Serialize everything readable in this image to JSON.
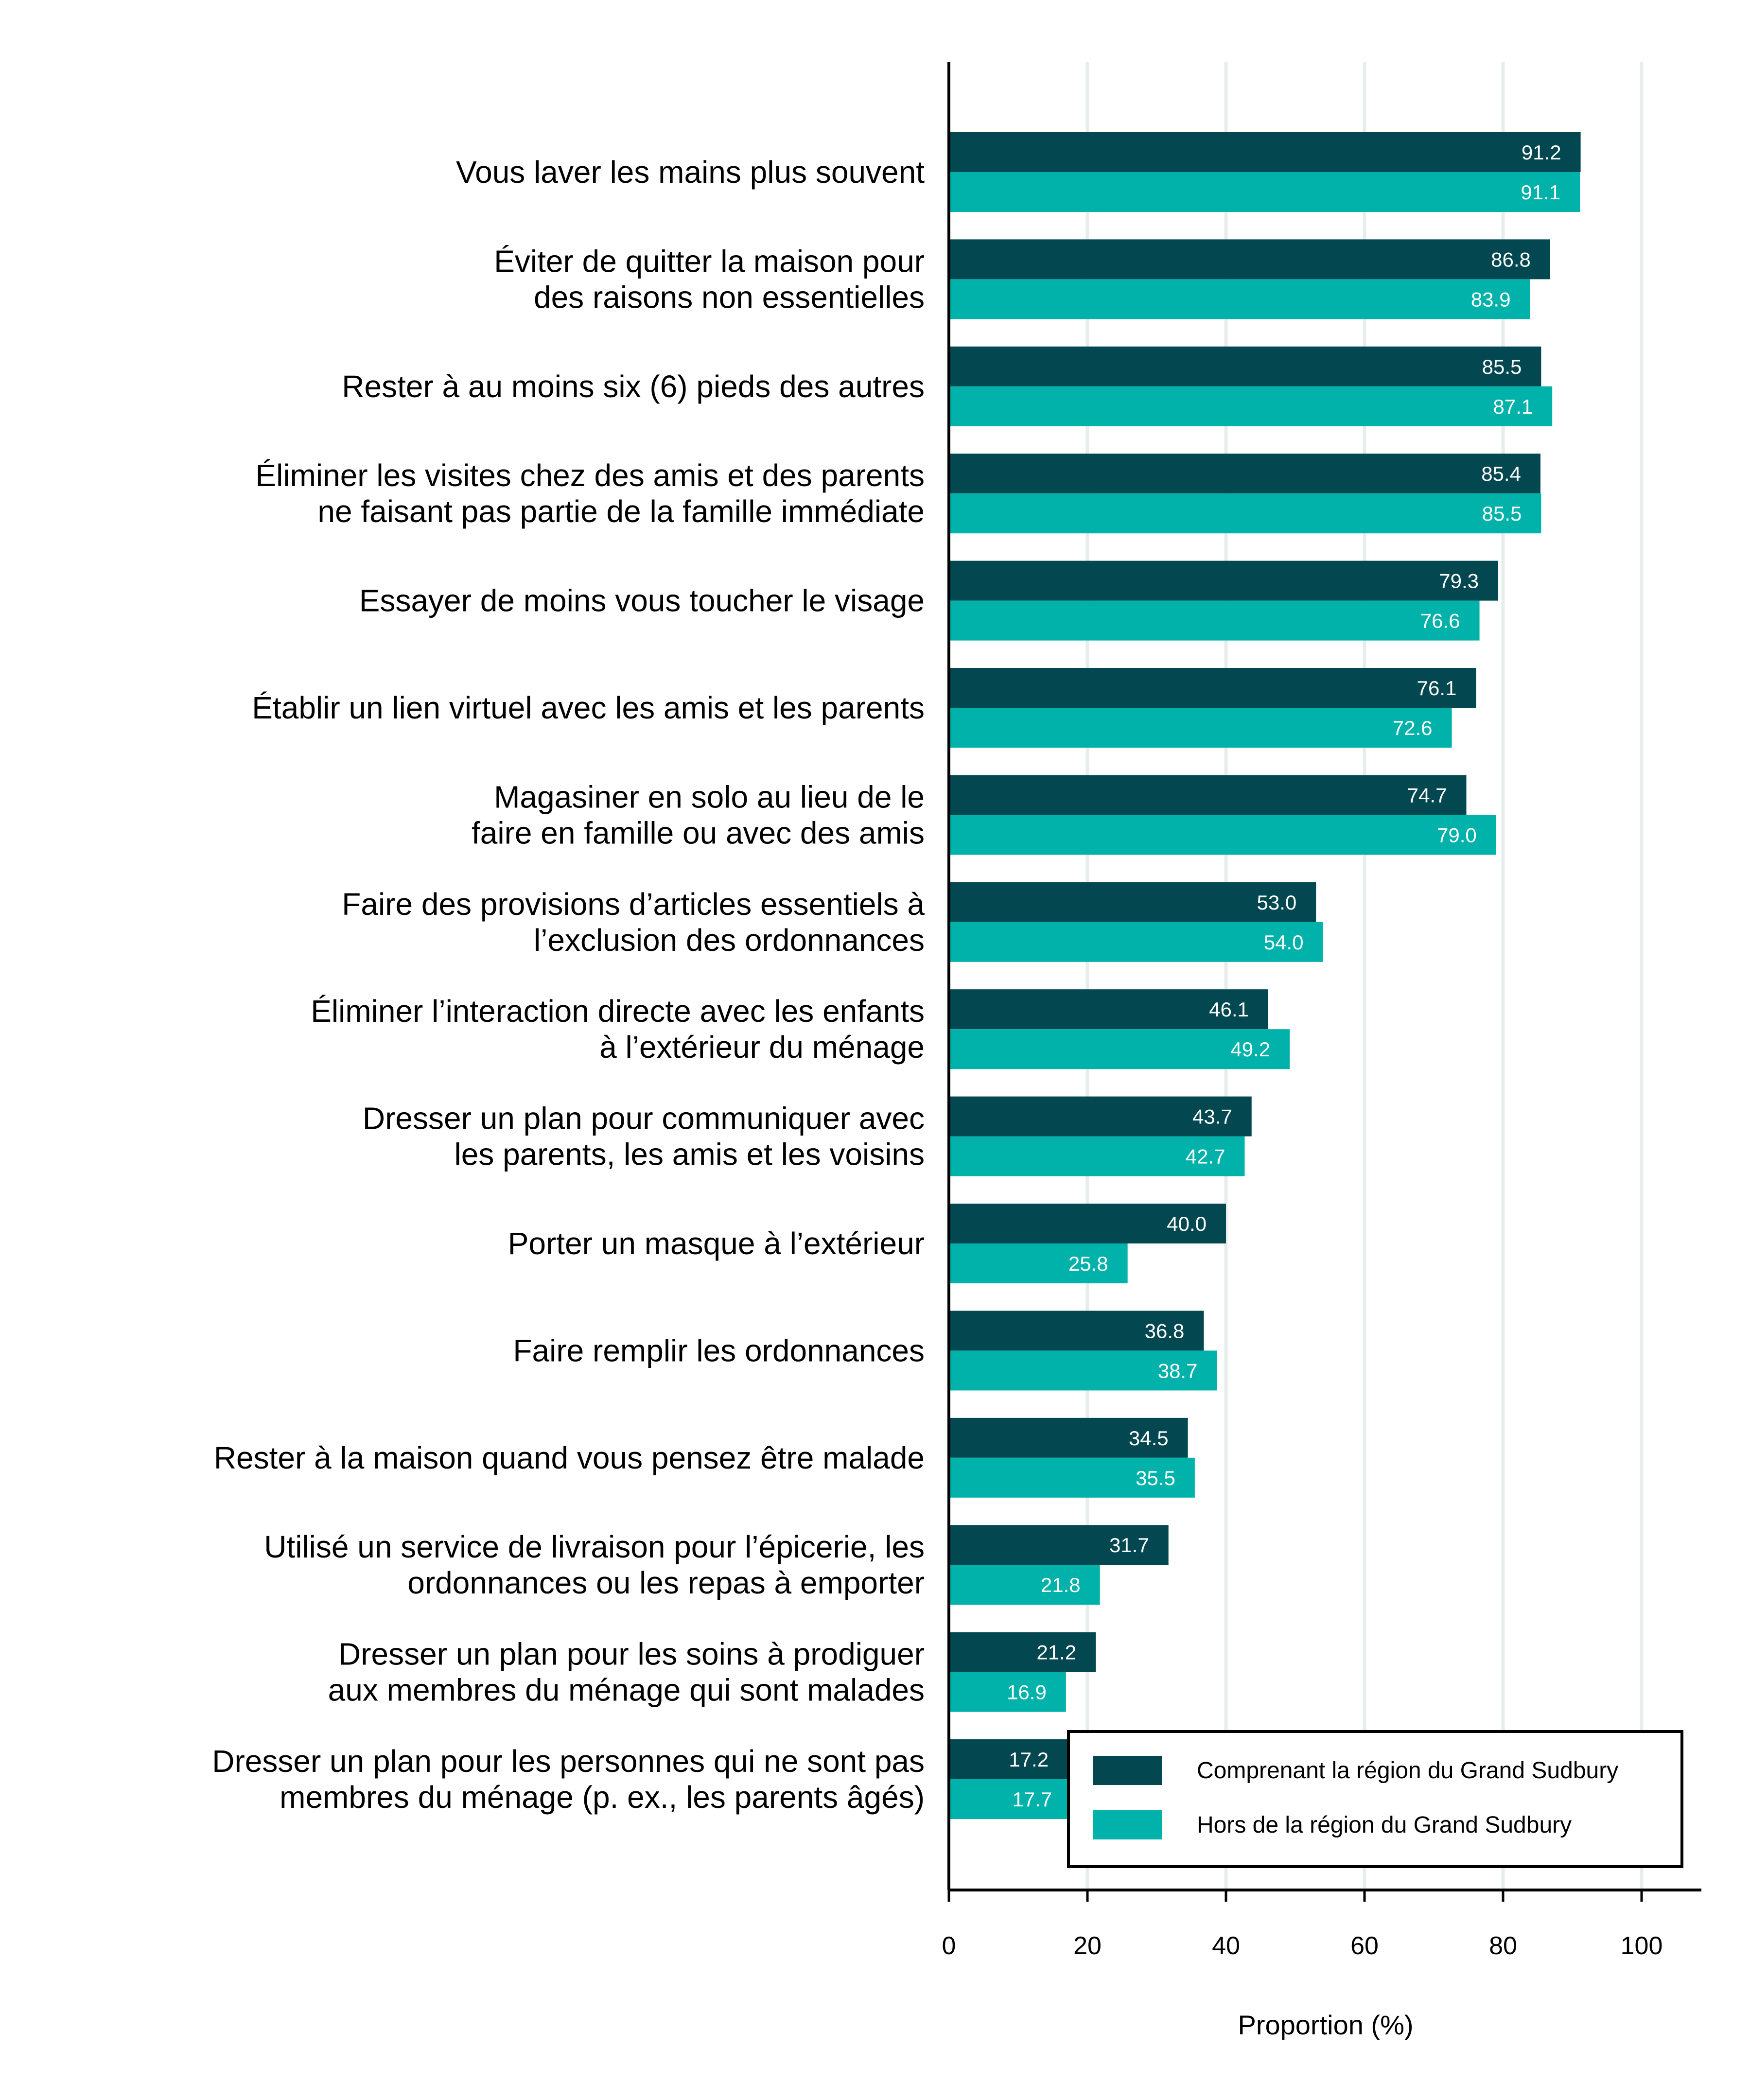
{
  "chart_data": {
    "type": "bar",
    "orientation": "horizontal",
    "categories": [
      [
        "Vous laver les mains plus souvent"
      ],
      [
        "Éviter de quitter la maison pour",
        "des raisons non essentielles"
      ],
      [
        "Rester à au moins six (6) pieds des autres"
      ],
      [
        "Éliminer les visites chez des amis et des parents",
        "ne faisant pas partie de la famille immédiate"
      ],
      [
        "Essayer de moins vous toucher le visage"
      ],
      [
        "Établir un lien virtuel avec les amis et les parents"
      ],
      [
        "Magasiner en solo au lieu de le",
        "faire en famille ou avec des amis"
      ],
      [
        "Faire des provisions d’articles essentiels à",
        "l’exclusion des ordonnances"
      ],
      [
        "Éliminer l’interaction directe avec les enfants",
        "à l’extérieur du ménage"
      ],
      [
        "Dresser un plan pour communiquer avec",
        "les parents, les amis et les voisins"
      ],
      [
        "Porter un masque à l’extérieur"
      ],
      [
        "Faire remplir les ordonnances"
      ],
      [
        "Rester à la maison quand vous pensez être malade"
      ],
      [
        "Utilisé un service de livraison pour l’épicerie, les",
        "ordonnances ou les repas à emporter"
      ],
      [
        "Dresser un plan pour les soins à prodiguer",
        "aux membres du ménage qui sont malades"
      ],
      [
        "Dresser un plan pour les personnes qui ne sont pas",
        "membres du ménage (p. ex., les parents âgés)"
      ]
    ],
    "series": [
      {
        "name": "Comprenant la région du Grand Sudbury",
        "color": "#034750",
        "values": [
          91.2,
          86.8,
          85.5,
          85.4,
          79.3,
          76.1,
          74.7,
          53.0,
          46.1,
          43.7,
          40.0,
          36.8,
          34.5,
          31.7,
          21.2,
          17.2
        ],
        "labels": [
          "91.2",
          "86.8",
          "85.5",
          "85.4",
          "79.3",
          "76.1",
          "74.7",
          "53.0",
          "46.1",
          "43.7",
          "40.0",
          "36.8",
          "34.5",
          "31.7",
          "21.2",
          "17.2"
        ]
      },
      {
        "name": "Hors de la région du Grand Sudbury",
        "color": "#00b2a9",
        "values": [
          91.1,
          83.9,
          87.1,
          85.5,
          76.6,
          72.6,
          79.0,
          54.0,
          49.2,
          42.7,
          25.8,
          38.7,
          35.5,
          21.8,
          16.9,
          17.7
        ],
        "labels": [
          "91.1",
          "83.9",
          "87.1",
          "85.5",
          "76.6",
          "72.6",
          "79.0",
          "54.0",
          "49.2",
          "42.7",
          "25.8",
          "38.7",
          "35.5",
          "21.8",
          "16.9",
          "17.7"
        ]
      }
    ],
    "xlabel": "Proportion (%)",
    "xlim": [
      0,
      100
    ],
    "xticks": [
      "0",
      "20",
      "40",
      "60",
      "80",
      "100"
    ],
    "xtick_values": [
      0,
      20,
      40,
      60,
      80,
      100
    ],
    "grid": "vertical",
    "grid_color": "#e6eeec",
    "legend_position": "bottom-right"
  }
}
